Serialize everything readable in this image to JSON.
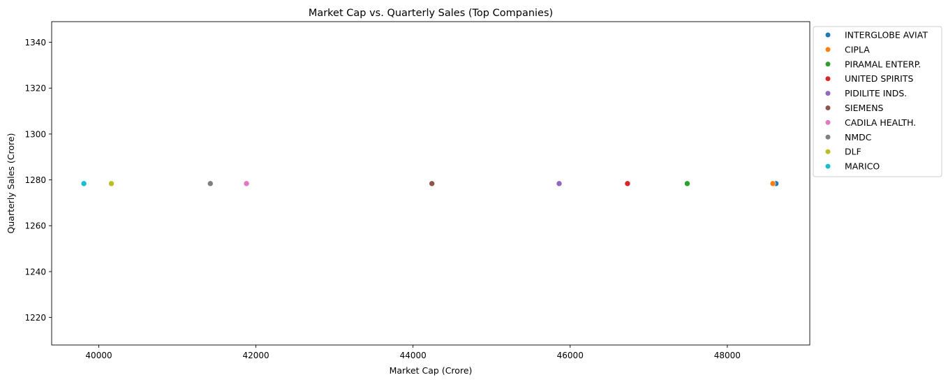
{
  "chart_data": {
    "type": "scatter",
    "title": "Market Cap vs. Quarterly Sales (Top Companies)",
    "xlabel": "Market Cap (Crore)",
    "ylabel": "Quarterly Sales (Crore)",
    "xlim": [
      39400,
      49050
    ],
    "ylim": [
      1208,
      1349
    ],
    "xticks": [
      40000,
      42000,
      44000,
      46000,
      48000
    ],
    "yticks": [
      1220,
      1240,
      1260,
      1280,
      1300,
      1320,
      1340
    ],
    "grid": false,
    "legend_position": "outside-right",
    "series": [
      {
        "name": "INTERGLOBE AVIAT",
        "color": "#1f77b4",
        "points": [
          {
            "x": 48620,
            "y": 1278.4
          }
        ]
      },
      {
        "name": "CIPLA",
        "color": "#ff7f0e",
        "points": [
          {
            "x": 48580,
            "y": 1278.4
          }
        ]
      },
      {
        "name": "PIRAMAL ENTERP.",
        "color": "#2ca02c",
        "points": [
          {
            "x": 47490,
            "y": 1278.4
          }
        ]
      },
      {
        "name": "UNITED SPIRITS",
        "color": "#d62728",
        "points": [
          {
            "x": 46730,
            "y": 1278.4
          }
        ]
      },
      {
        "name": "PIDILITE INDS.",
        "color": "#9467bd",
        "points": [
          {
            "x": 45860,
            "y": 1278.4
          }
        ]
      },
      {
        "name": "SIEMENS",
        "color": "#8c564b",
        "points": [
          {
            "x": 44240,
            "y": 1278.4
          }
        ]
      },
      {
        "name": "CADILA HEALTH.",
        "color": "#e377c2",
        "points": [
          {
            "x": 41880,
            "y": 1278.4
          }
        ]
      },
      {
        "name": "NMDC",
        "color": "#7f7f7f",
        "points": [
          {
            "x": 41420,
            "y": 1278.4
          }
        ]
      },
      {
        "name": "DLF",
        "color": "#bcbd22",
        "points": [
          {
            "x": 40160,
            "y": 1278.4
          }
        ]
      },
      {
        "name": "MARICO",
        "color": "#17becf",
        "points": [
          {
            "x": 39810,
            "y": 1278.4
          }
        ]
      }
    ]
  }
}
